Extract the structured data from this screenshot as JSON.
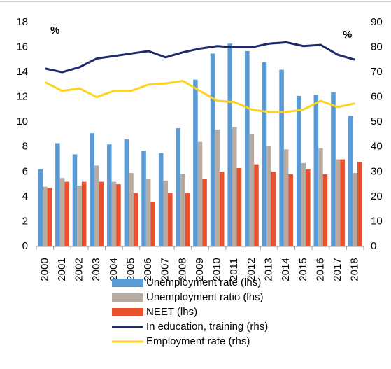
{
  "chart_data": {
    "type": "bar_line",
    "annotations": [
      "%",
      "%"
    ],
    "categories": [
      "2000",
      "2001",
      "2002",
      "2003",
      "2004",
      "2005",
      "2006",
      "2007",
      "2008",
      "2009",
      "2010",
      "2011",
      "2012",
      "2013",
      "2014",
      "2015",
      "2016",
      "2017",
      "2018"
    ],
    "series": [
      {
        "name": "Unemployment rate (lhs)",
        "type": "bar",
        "color": "#5b9bd5",
        "values": [
          6.2,
          8.3,
          7.4,
          9.1,
          8.2,
          8.6,
          7.7,
          7.5,
          9.5,
          13.4,
          15.5,
          16.3,
          15.7,
          14.8,
          14.2,
          12.1,
          12.2,
          12.4,
          10.5
        ]
      },
      {
        "name": "Unemployment ratio (lhs)",
        "type": "bar",
        "color": "#b8aca2",
        "values": [
          4.8,
          5.5,
          4.9,
          6.5,
          5.2,
          5.9,
          5.4,
          5.3,
          5.8,
          8.4,
          9.4,
          9.6,
          9.0,
          8.1,
          7.8,
          6.7,
          7.9,
          7.0,
          5.9
        ]
      },
      {
        "name": "NEET (lhs)",
        "type": "bar",
        "color": "#e8512b",
        "values": [
          4.7,
          5.2,
          5.2,
          5.2,
          5.0,
          4.3,
          3.6,
          4.3,
          4.3,
          5.4,
          6.0,
          6.3,
          6.6,
          6.0,
          5.8,
          6.2,
          5.8,
          7.0,
          6.8
        ]
      },
      {
        "name": "In education, training (rhs)",
        "type": "line",
        "axis": "y2",
        "color": "#1f2a6b",
        "values": [
          71.5,
          70,
          72,
          75.5,
          76.5,
          77.5,
          78.5,
          76,
          78,
          79.5,
          80.5,
          80,
          80,
          81.5,
          82,
          80.5,
          81,
          77,
          75
        ]
      },
      {
        "name": "Employment rate (rhs)",
        "type": "line",
        "axis": "y2",
        "color": "#ffd21f",
        "values": [
          66,
          62.5,
          63.5,
          60,
          62.5,
          62.5,
          65,
          65.5,
          66.5,
          62.5,
          58.5,
          58,
          55,
          54,
          54,
          55,
          58.5,
          56,
          57.5
        ]
      }
    ],
    "ylim": [
      0,
      18
    ],
    "yticks": [
      0,
      2,
      4,
      6,
      8,
      10,
      12,
      14,
      16,
      18
    ],
    "y2lim": [
      0,
      90
    ],
    "y2ticks": [
      0,
      10,
      20,
      30,
      40,
      50,
      60,
      70,
      80,
      90
    ]
  }
}
